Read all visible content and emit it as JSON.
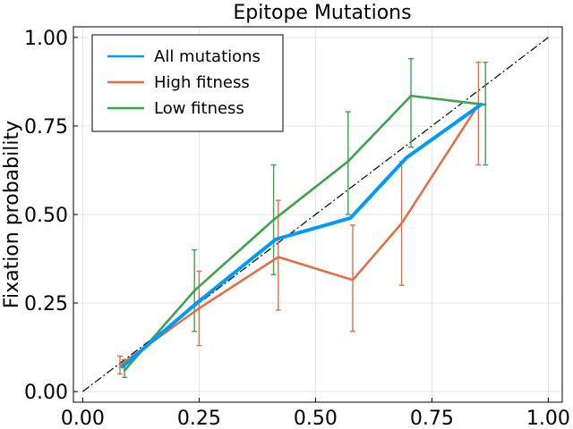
{
  "chart_data": {
    "type": "line",
    "title": "Epitope Mutations",
    "xlabel": "",
    "ylabel": "Fixation probability",
    "xlim": [
      -0.02,
      1.03
    ],
    "ylim": [
      -0.03,
      1.03
    ],
    "xticks": [
      0,
      0.25,
      0.5,
      0.75,
      1.0
    ],
    "xtick_labels": [
      "0.00",
      "0.25",
      "0.50",
      "0.75",
      "1.00"
    ],
    "yticks": [
      0,
      0.25,
      0.5,
      0.75,
      1.0
    ],
    "ytick_labels": [
      "0.00",
      "0.25",
      "0.50",
      "0.75",
      "1.00"
    ],
    "grid": true,
    "legend_position": "top-left",
    "reference_line": {
      "x": [
        0,
        1
      ],
      "y": [
        0,
        1
      ],
      "style": "dash-dot",
      "color": "#000000"
    },
    "series": [
      {
        "name": "All mutations",
        "color": "#009af9",
        "x": [
          0.085,
          0.245,
          0.415,
          0.575,
          0.695,
          0.855
        ],
        "y": [
          0.07,
          0.25,
          0.43,
          0.49,
          0.66,
          0.81
        ]
      },
      {
        "name": "High fitness",
        "color": "#e26f46",
        "x": [
          0.08,
          0.25,
          0.42,
          0.58,
          0.685,
          0.85
        ],
        "y": [
          0.075,
          0.235,
          0.38,
          0.315,
          0.475,
          0.81
        ],
        "err_low": [
          0.05,
          0.13,
          0.23,
          0.17,
          0.3,
          0.64
        ],
        "err_high": [
          0.1,
          0.34,
          0.54,
          0.47,
          0.65,
          0.93
        ]
      },
      {
        "name": "Low fitness",
        "color": "#3da44d",
        "x": [
          0.09,
          0.24,
          0.41,
          0.57,
          0.705,
          0.865
        ],
        "y": [
          0.06,
          0.285,
          0.485,
          0.65,
          0.835,
          0.81
        ],
        "err_low": [
          0.04,
          0.17,
          0.33,
          0.5,
          0.69,
          0.64
        ],
        "err_high": [
          0.09,
          0.4,
          0.64,
          0.79,
          0.94,
          0.93
        ]
      }
    ]
  }
}
